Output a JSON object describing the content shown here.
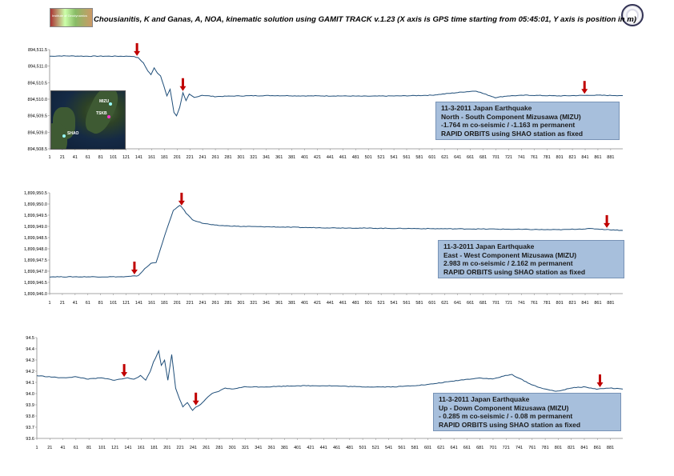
{
  "title": "Chousianitis, K and Ganas, A, NOA, kinematic solution using GAMIT TRACK v.1.23 (X axis is GPS time starting from 05:45:01, Y axis is position in m)",
  "logo_text": "Institute of Geodynamics",
  "colors": {
    "line": "#1f4e79",
    "arrow": "#c00000",
    "box": "#a7bfdc",
    "grid": "#bbbbbb"
  },
  "map": {
    "labels": [
      "MIZU",
      "TSKB",
      "SHAO"
    ]
  },
  "chart_data": [
    {
      "type": "line",
      "xlabel": "",
      "ylabel": "",
      "x_ticks": [
        "1",
        "21",
        "41",
        "61",
        "81",
        "101",
        "121",
        "141",
        "161",
        "181",
        "201",
        "221",
        "241",
        "261",
        "281",
        "301",
        "321",
        "341",
        "361",
        "381",
        "401",
        "421",
        "441",
        "461",
        "481",
        "501",
        "521",
        "541",
        "561",
        "581",
        "601",
        "621",
        "641",
        "661",
        "681",
        "701",
        "721",
        "741",
        "761",
        "781",
        "801",
        "821",
        "841",
        "861",
        "881"
      ],
      "y_ticks": [
        "894,508.5",
        "894,509.0",
        "894,509.5",
        "894,510.0",
        "894,510.5",
        "894,511.0",
        "894,511.5"
      ],
      "ylim": [
        894508.5,
        894511.5
      ],
      "xlim": [
        1,
        900
      ],
      "grid": false,
      "series": [
        {
          "x": [
            1,
            20,
            60,
            100,
            130,
            140,
            148,
            155,
            160,
            165,
            170,
            175,
            180,
            185,
            190,
            196,
            200,
            205,
            210,
            215,
            220,
            228,
            240,
            260,
            300,
            350,
            400,
            450,
            500,
            550,
            600,
            650,
            670,
            680,
            700,
            720,
            750,
            800,
            850,
            900
          ],
          "y": [
            894511.3,
            894511.31,
            894511.3,
            894511.3,
            894511.3,
            894511.25,
            894511.1,
            894510.85,
            894510.75,
            894510.95,
            894510.8,
            894510.7,
            894510.4,
            894510.1,
            894510.3,
            894509.6,
            894509.5,
            894509.75,
            894510.2,
            894509.95,
            894510.15,
            894510.05,
            894510.12,
            894510.08,
            894510.1,
            894510.11,
            894510.1,
            894510.1,
            894510.09,
            894510.1,
            894510.12,
            894510.22,
            894510.25,
            894510.18,
            894510.05,
            894510.1,
            894510.12,
            894510.1,
            894510.12,
            894510.11
          ]
        }
      ],
      "arrows_x": [
        138,
        210,
        840
      ],
      "info": [
        "11-3-2011 Japan Earthquake",
        "North - South Component Mizusawa (MIZU)",
        "-1.764 m co-seismic  / -1.163 m permanent",
        "RAPID ORBITS using SHAO station as fixed"
      ]
    },
    {
      "type": "line",
      "xlabel": "",
      "ylabel": "",
      "x_ticks": [
        "1",
        "21",
        "41",
        "61",
        "81",
        "101",
        "121",
        "141",
        "161",
        "181",
        "201",
        "221",
        "241",
        "261",
        "281",
        "301",
        "321",
        "341",
        "361",
        "381",
        "401",
        "421",
        "441",
        "461",
        "481",
        "501",
        "521",
        "541",
        "561",
        "581",
        "601",
        "621",
        "641",
        "661",
        "681",
        "701",
        "721",
        "741",
        "761",
        "781",
        "801",
        "821",
        "841",
        "861",
        "881"
      ],
      "y_ticks": [
        "1,899,946.0",
        "1,899,946.5",
        "1,899,947.0",
        "1,899,947.5",
        "1,899,948.0",
        "1,899,948.5",
        "1,899,949.0",
        "1,899,949.5",
        "1,899,950.0",
        "1,899,950.5"
      ],
      "ylim": [
        1899946.0,
        1899950.5
      ],
      "xlim": [
        1,
        900
      ],
      "grid": false,
      "series": [
        {
          "x": [
            1,
            40,
            80,
            120,
            140,
            150,
            160,
            168,
            175,
            185,
            195,
            205,
            210,
            215,
            225,
            240,
            260,
            300,
            350,
            400,
            500,
            600,
            700,
            800,
            850,
            900
          ],
          "y": [
            1899946.75,
            1899946.75,
            1899946.75,
            1899946.75,
            1899946.8,
            1899947.1,
            1899947.35,
            1899947.4,
            1899948.0,
            1899948.9,
            1899949.7,
            1899949.95,
            1899949.8,
            1899949.6,
            1899949.3,
            1899949.15,
            1899949.05,
            1899949.0,
            1899948.98,
            1899948.95,
            1899948.92,
            1899948.9,
            1899948.88,
            1899948.85,
            1899948.9,
            1899948.82
          ]
        }
      ],
      "arrows_x": [
        134,
        208,
        875
      ],
      "info": [
        "11-3-2011 Japan Earthquake",
        "East - West Component Mizusawa (MIZU)",
        "2.983 m co-seismic / 2.162 m permanent",
        "RAPID ORBITS using SHAO station as fixed"
      ]
    },
    {
      "type": "line",
      "xlabel": "",
      "ylabel": "",
      "x_ticks": [
        "1",
        "21",
        "41",
        "61",
        "81",
        "101",
        "121",
        "141",
        "161",
        "181",
        "201",
        "221",
        "241",
        "261",
        "281",
        "301",
        "321",
        "341",
        "361",
        "381",
        "401",
        "421",
        "441",
        "461",
        "481",
        "501",
        "521",
        "541",
        "561",
        "581",
        "601",
        "621",
        "641",
        "661",
        "681",
        "701",
        "721",
        "741",
        "761",
        "781",
        "801",
        "821",
        "841",
        "861",
        "881"
      ],
      "y_ticks": [
        "93.6",
        "93.7",
        "93.8",
        "93.9",
        "94.0",
        "94.1",
        "94.2",
        "94.3",
        "94.4",
        "94.5"
      ],
      "ylim": [
        93.6,
        94.5
      ],
      "xlim": [
        1,
        900
      ],
      "grid": false,
      "series": [
        {
          "x": [
            1,
            20,
            40,
            60,
            80,
            100,
            120,
            140,
            150,
            160,
            168,
            175,
            180,
            188,
            192,
            197,
            202,
            208,
            214,
            220,
            225,
            232,
            240,
            245,
            252,
            260,
            270,
            280,
            290,
            300,
            320,
            350,
            400,
            450,
            500,
            550,
            600,
            650,
            680,
            700,
            720,
            730,
            740,
            760,
            780,
            800,
            820,
            840,
            860,
            880,
            900
          ],
          "y": [
            94.16,
            94.15,
            94.14,
            94.15,
            94.13,
            94.14,
            94.12,
            94.14,
            94.13,
            94.16,
            94.12,
            94.2,
            94.28,
            94.38,
            94.25,
            94.3,
            94.12,
            94.35,
            94.05,
            93.95,
            93.88,
            93.92,
            93.85,
            93.88,
            93.9,
            93.95,
            94.0,
            94.02,
            94.05,
            94.04,
            94.06,
            94.06,
            94.07,
            94.07,
            94.06,
            94.06,
            94.08,
            94.12,
            94.14,
            94.13,
            94.16,
            94.17,
            94.14,
            94.08,
            94.04,
            94.02,
            94.05,
            94.06,
            94.04,
            94.05,
            94.04
          ]
        }
      ],
      "arrows_x": [
        135,
        245,
        865
      ],
      "info": [
        "11-3-2011 Japan Earthquake",
        "Up - Down Component  Mizusawa (MIZU)",
        "- 0.285 m co-seismic  / - 0.08 m permanent",
        "RAPID ORBITS using SHAO station as fixed"
      ]
    }
  ]
}
